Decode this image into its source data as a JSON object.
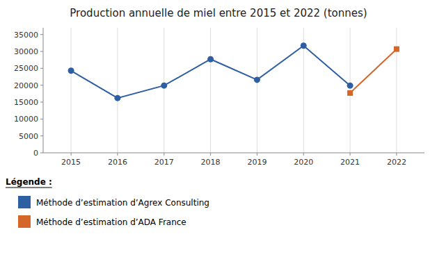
{
  "chart_data": {
    "type": "line",
    "title": "Production annuelle de miel entre 2015 et 2022 (tonnes)",
    "x": [
      2015,
      2016,
      2017,
      2018,
      2019,
      2020,
      2021,
      2022
    ],
    "series": [
      {
        "name": "Méthode d’estimation d’Agrex Consulting",
        "color": "#2E5FA3",
        "marker": "circle",
        "values": [
          24300,
          16200,
          19900,
          27700,
          21600,
          31700,
          19900,
          null
        ]
      },
      {
        "name": "Méthode d’estimation d’ADA France",
        "color": "#D4662A",
        "marker": "square",
        "values": [
          null,
          null,
          null,
          null,
          null,
          null,
          17700,
          30700
        ]
      }
    ],
    "xlim": [
      2014.4,
      2022.6
    ],
    "xticks": [
      2015,
      2016,
      2017,
      2018,
      2019,
      2020,
      2021,
      2022
    ],
    "ylim": [
      0,
      37000
    ],
    "yticks": [
      0,
      5000,
      10000,
      15000,
      20000,
      25000,
      30000,
      35000
    ],
    "grid": "x",
    "legend": "below",
    "legend_title": "Légende :"
  }
}
